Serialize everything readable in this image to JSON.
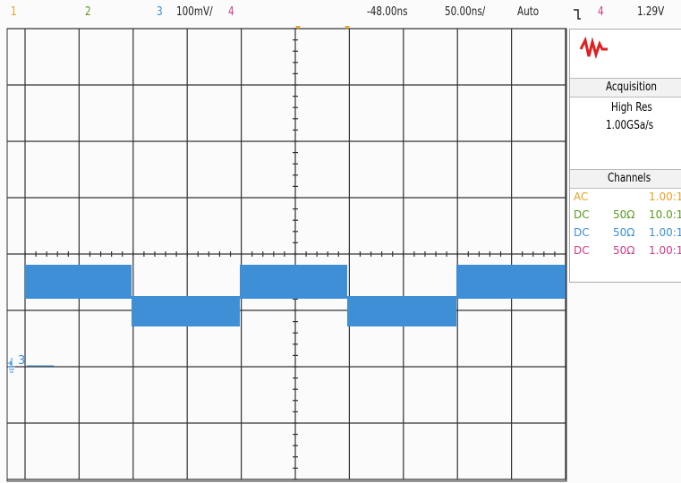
{
  "top_bar": {
    "channels": [
      "1",
      "2",
      "3",
      "4"
    ],
    "ch3_scale": "100mV/",
    "time_offset": "-48.00ns",
    "time_scale": "50.00ns/",
    "trigger_mode": "Auto",
    "trigger_source": "4",
    "trigger_level": "1.29V"
  },
  "ground_marker": "3",
  "acquisition": {
    "title": "Acquisition",
    "mode": "High Res",
    "sample_rate": "1.00GSa/s"
  },
  "channels_panel": {
    "title": "Channels",
    "rows": [
      {
        "coupling": "AC",
        "ratio": "1.00:1"
      },
      {
        "coupling": "DC",
        "impedance": "50Ω",
        "ratio": "10.0:1"
      },
      {
        "coupling": "DC",
        "impedance": "50Ω",
        "ratio": "1.00:1"
      },
      {
        "coupling": "DC",
        "impedance": "50Ω",
        "ratio": "1.00:1"
      }
    ]
  }
}
